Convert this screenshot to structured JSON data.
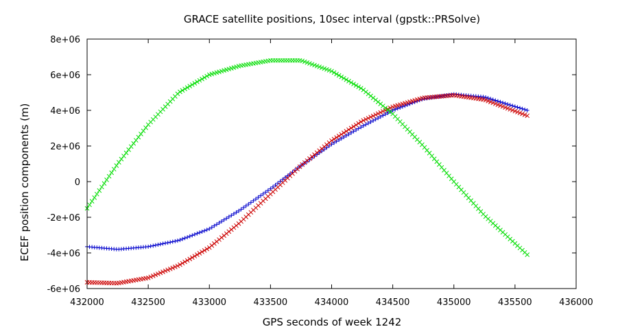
{
  "chart_data": {
    "type": "scatter",
    "title": "GRACE satellite positions, 10sec interval (gpstk::PRSolve)",
    "xlabel": "GPS seconds of week 1242",
    "ylabel": "ECEF position components (m)",
    "xlim": [
      432000,
      436000
    ],
    "ylim": [
      -6000000,
      8000000
    ],
    "x_ticks": [
      432000,
      432500,
      433000,
      433500,
      434000,
      434500,
      435000,
      435500,
      436000
    ],
    "x_tick_labels": [
      "432000",
      "432500",
      "433000",
      "433500",
      "434000",
      "434500",
      "435000",
      "435500",
      "436000"
    ],
    "y_ticks": [
      -6000000,
      -4000000,
      -2000000,
      0,
      2000000,
      4000000,
      6000000,
      8000000
    ],
    "y_tick_labels": [
      "-6e+06",
      "-4e+06",
      "-2e+06",
      "0",
      "2e+06",
      "4e+06",
      "6e+06",
      "8e+06"
    ],
    "grid": false,
    "legend": "none",
    "x": [
      432000,
      432250,
      432500,
      432750,
      433000,
      433250,
      433500,
      433750,
      434000,
      434250,
      434500,
      434750,
      435000,
      435250,
      435600
    ],
    "series": [
      {
        "color": "#0000cc",
        "marker": "plus",
        "values": [
          -3650000,
          -3800000,
          -3650000,
          -3300000,
          -2650000,
          -1600000,
          -400000,
          900000,
          2100000,
          3100000,
          4000000,
          4650000,
          4900000,
          4750000,
          4000000
        ]
      },
      {
        "color": "#cc0000",
        "marker": "cross",
        "values": [
          -5650000,
          -5700000,
          -5400000,
          -4700000,
          -3700000,
          -2300000,
          -700000,
          900000,
          2300000,
          3400000,
          4200000,
          4700000,
          4850000,
          4600000,
          3700000
        ]
      },
      {
        "color": "#00dd00",
        "marker": "cross",
        "values": [
          -1500000,
          1000000,
          3200000,
          5000000,
          6000000,
          6500000,
          6800000,
          6800000,
          6200000,
          5200000,
          3800000,
          2000000,
          0,
          -1900000,
          -4100000
        ]
      }
    ]
  }
}
